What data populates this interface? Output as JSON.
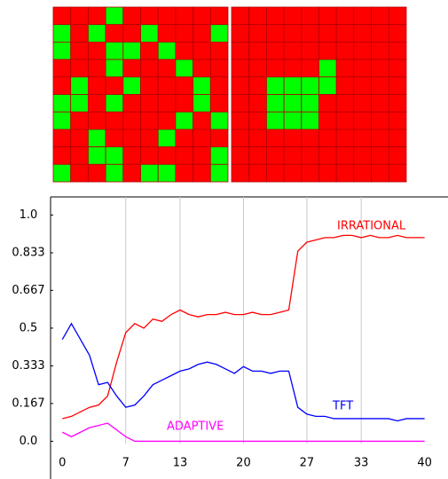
{
  "grids": [
    {
      "cells": [
        [
          0,
          0,
          0,
          1,
          0,
          0,
          0,
          0,
          0,
          0
        ],
        [
          1,
          0,
          1,
          0,
          0,
          1,
          0,
          0,
          0,
          1
        ],
        [
          1,
          0,
          0,
          1,
          1,
          0,
          1,
          0,
          0,
          0
        ],
        [
          0,
          0,
          0,
          1,
          0,
          0,
          0,
          1,
          0,
          0
        ],
        [
          0,
          1,
          0,
          0,
          1,
          0,
          0,
          0,
          1,
          0
        ],
        [
          1,
          1,
          0,
          1,
          0,
          0,
          0,
          0,
          1,
          0
        ],
        [
          1,
          0,
          0,
          0,
          0,
          0,
          0,
          1,
          0,
          1
        ],
        [
          0,
          0,
          1,
          0,
          0,
          0,
          1,
          0,
          0,
          0
        ],
        [
          0,
          0,
          1,
          1,
          0,
          0,
          0,
          0,
          0,
          1
        ],
        [
          1,
          0,
          0,
          1,
          0,
          1,
          1,
          0,
          0,
          1
        ]
      ]
    },
    {
      "cells": [
        [
          0,
          0,
          0,
          0,
          0,
          0,
          0,
          0,
          0,
          0
        ],
        [
          0,
          0,
          0,
          0,
          0,
          0,
          0,
          0,
          0,
          0
        ],
        [
          0,
          0,
          0,
          0,
          0,
          0,
          0,
          0,
          0,
          0
        ],
        [
          0,
          0,
          0,
          0,
          0,
          1,
          0,
          0,
          0,
          0
        ],
        [
          0,
          0,
          1,
          1,
          1,
          1,
          0,
          0,
          0,
          0
        ],
        [
          0,
          0,
          1,
          1,
          1,
          0,
          0,
          0,
          0,
          0
        ],
        [
          0,
          0,
          1,
          1,
          1,
          0,
          0,
          0,
          0,
          0
        ],
        [
          0,
          0,
          0,
          0,
          0,
          0,
          0,
          0,
          0,
          0
        ],
        [
          0,
          0,
          0,
          0,
          0,
          0,
          0,
          0,
          0,
          0
        ],
        [
          0,
          0,
          0,
          0,
          0,
          0,
          0,
          0,
          0,
          0
        ]
      ]
    }
  ],
  "cell_colors": [
    "#ff0000",
    "#00ff00"
  ],
  "chart_data": {
    "type": "line",
    "x": [
      0,
      1,
      2,
      3,
      4,
      5,
      6,
      7,
      8,
      9,
      10,
      11,
      12,
      13,
      14,
      15,
      16,
      17,
      18,
      19,
      20,
      21,
      22,
      23,
      24,
      25,
      26,
      27,
      28,
      29,
      30,
      31,
      32,
      33,
      34,
      35,
      36,
      37,
      38,
      39,
      40
    ],
    "series": [
      {
        "name": "IRRATIONAL",
        "color": "#ff0000",
        "values": [
          0.1,
          0.11,
          0.13,
          0.15,
          0.16,
          0.2,
          0.35,
          0.48,
          0.52,
          0.5,
          0.54,
          0.53,
          0.56,
          0.58,
          0.56,
          0.55,
          0.56,
          0.56,
          0.57,
          0.56,
          0.56,
          0.57,
          0.56,
          0.56,
          0.57,
          0.58,
          0.84,
          0.88,
          0.89,
          0.9,
          0.9,
          0.91,
          0.91,
          0.9,
          0.91,
          0.9,
          0.9,
          0.91,
          0.9,
          0.9,
          0.9
        ]
      },
      {
        "name": "TFT",
        "color": "#0000ff",
        "values": [
          0.45,
          0.52,
          0.45,
          0.38,
          0.25,
          0.26,
          0.2,
          0.15,
          0.16,
          0.2,
          0.25,
          0.27,
          0.29,
          0.31,
          0.32,
          0.34,
          0.35,
          0.34,
          0.32,
          0.3,
          0.33,
          0.31,
          0.31,
          0.3,
          0.31,
          0.31,
          0.15,
          0.12,
          0.11,
          0.11,
          0.1,
          0.1,
          0.1,
          0.1,
          0.1,
          0.1,
          0.1,
          0.09,
          0.1,
          0.1,
          0.1
        ]
      },
      {
        "name": "ADAPTIVE",
        "color": "#ff00ff",
        "values": [
          0.04,
          0.02,
          0.04,
          0.06,
          0.07,
          0.08,
          0.05,
          0.02,
          0,
          0,
          0,
          0,
          0,
          0,
          0,
          0,
          0,
          0,
          0,
          0,
          0,
          0,
          0,
          0,
          0,
          0,
          0,
          0,
          0,
          0,
          0,
          0,
          0,
          0,
          0,
          0,
          0,
          0,
          0,
          0,
          0
        ]
      }
    ],
    "xlim": [
      -1.3,
      41.8
    ],
    "ylim": [
      -0.01,
      1.08
    ],
    "xticks": [
      0,
      7,
      13,
      20,
      27,
      33,
      40
    ],
    "yticks": [
      {
        "value": 0,
        "label": "0.0"
      },
      0.167,
      0.333,
      0.5,
      0.667,
      0.833,
      {
        "value": 1,
        "label": "1.0"
      }
    ],
    "grid": "x"
  }
}
